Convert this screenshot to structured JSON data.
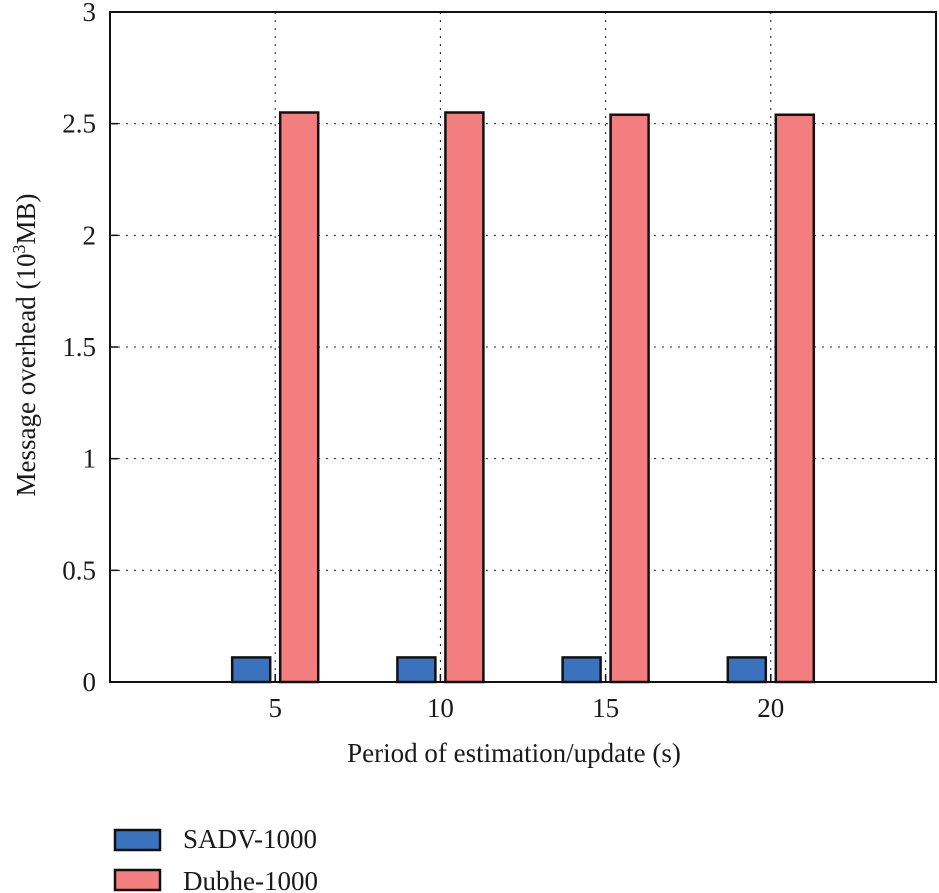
{
  "chart_data": {
    "type": "bar",
    "title": "",
    "xlabel": "Period of estimation/update (s)",
    "ylabel_main": "Message overhead (10",
    "ylabel_sup": "3",
    "ylabel_end": "MB)",
    "categories": [
      "5",
      "10",
      "15",
      "20"
    ],
    "ylim": [
      0,
      3
    ],
    "yticks": [
      0,
      0.5,
      1,
      1.5,
      2,
      2.5,
      3
    ],
    "ytick_labels": [
      "0",
      "0.5",
      "1",
      "1.5",
      "2",
      "2.5",
      "3"
    ],
    "grid": true,
    "legend_position": "bottom-left",
    "series": [
      {
        "name": "SADV-1000",
        "color": "#3b72bd",
        "values": [
          0.11,
          0.11,
          0.11,
          0.11
        ]
      },
      {
        "name": "Dubhe-1000",
        "color": "#f27e80",
        "values": [
          2.55,
          2.55,
          2.54,
          2.54
        ]
      }
    ]
  }
}
